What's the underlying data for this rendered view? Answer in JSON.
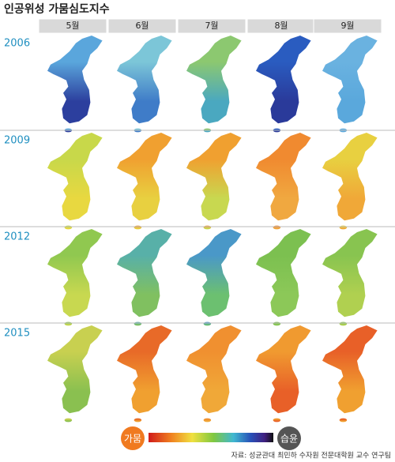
{
  "title": "인공위성 가뭄심도지수",
  "months": [
    "5월",
    "6월",
    "7월",
    "8월",
    "9월"
  ],
  "rows": [
    {
      "year": "2006",
      "colors": [
        [
          "#5aa6dc",
          "#2c3f9e"
        ],
        [
          "#7cc6d8",
          "#3f7cc8"
        ],
        [
          "#8cc870",
          "#4aa8c0"
        ],
        [
          "#2a5cc0",
          "#2a3a9a"
        ],
        [
          "#6ab2e0",
          "#5aa8dc"
        ]
      ]
    },
    {
      "year": "2009",
      "colors": [
        [
          "#c8d84a",
          "#e8d840"
        ],
        [
          "#f0a030",
          "#e8d040"
        ],
        [
          "#f0a030",
          "#c8d850"
        ],
        [
          "#f08a30",
          "#f0a840"
        ],
        [
          "#e8d040",
          "#f0a838"
        ]
      ]
    },
    {
      "year": "2012",
      "colors": [
        [
          "#90c850",
          "#c8d850"
        ],
        [
          "#58b0a8",
          "#80c060"
        ],
        [
          "#4a98c8",
          "#6cc070"
        ],
        [
          "#7cc050",
          "#8cc858"
        ],
        [
          "#88c450",
          "#b0d050"
        ]
      ]
    },
    {
      "year": "2015",
      "colors": [
        [
          "#c8d050",
          "#8ac050"
        ],
        [
          "#e86a28",
          "#f0a030"
        ],
        [
          "#f09030",
          "#f0a838"
        ],
        [
          "#f09a30",
          "#e86028"
        ],
        [
          "#e86028",
          "#f0a030"
        ]
      ]
    }
  ],
  "legend": {
    "dry": "가뭄",
    "wet": "습윤"
  },
  "source": "자료: 성균관대 최민하 수자원 전문대학원 교수 연구팀"
}
